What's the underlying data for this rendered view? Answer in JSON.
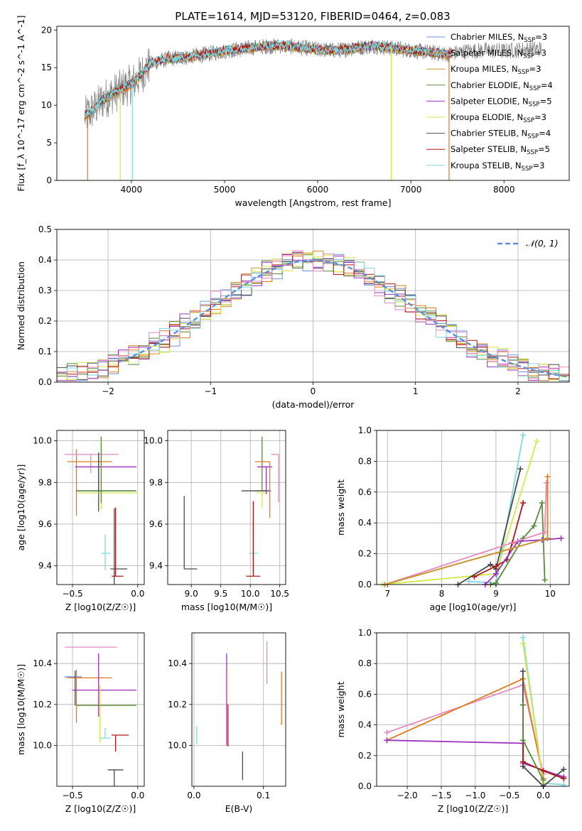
{
  "figure_title": "PLATE=1614, MJD=53120, FIBERID=0464, z=0.083",
  "colors": {
    "Chabrier MILES": "#6a8fe0",
    "Salpeter MILES": "#e07b1a",
    "Kroupa MILES": "#c8962e",
    "Chabrier ELODIE": "#5a8a3c",
    "Salpeter ELODIE": "#9b30c0",
    "Kroupa ELODIE": "#d4e84a",
    "Chabrier STELIB": "#4a4a4a",
    "Salpeter STELIB": "#b01818",
    "Kroupa STELIB": "#7fd9e0",
    "pink": "#e58ac0",
    "gaussian": "#5b8dd9"
  },
  "chart_data": [
    {
      "id": "spectrum",
      "type": "line",
      "title": "PLATE=1614, MJD=53120, FIBERID=0464, z=0.083",
      "xlabel": "wavelength [Angstrom, rest frame]",
      "ylabel": "Flux [f_λ 10^-17 erg cm^-2 s^-1 A^-1]",
      "xlim": [
        3200,
        8700
      ],
      "ylim": [
        0,
        20.5
      ],
      "xticks": [
        4000,
        5000,
        6000,
        7000,
        8000
      ],
      "yticks": [
        0,
        5,
        10,
        15,
        20
      ],
      "grid": false,
      "legend_position": "top-right",
      "legend": [
        {
          "label": "Chabrier MILES, N",
          "sub": "SSP",
          "suffix": "=3",
          "color": "#6a8fe0"
        },
        {
          "label": "Salpeter MILES, N",
          "sub": "SSP",
          "suffix": "=3",
          "color": "#e07b1a"
        },
        {
          "label": "Kroupa MILES, N",
          "sub": "SSP",
          "suffix": "=3",
          "color": "#c8962e"
        },
        {
          "label": "Chabrier ELODIE, N",
          "sub": "SSP",
          "suffix": "=4",
          "color": "#5a8a3c"
        },
        {
          "label": "Salpeter ELODIE, N",
          "sub": "SSP",
          "suffix": "=5",
          "color": "#9b30c0"
        },
        {
          "label": "Kroupa ELODIE, N",
          "sub": "SSP",
          "suffix": "=3",
          "color": "#d4e84a"
        },
        {
          "label": "Chabrier STELIB, N",
          "sub": "SSP",
          "suffix": "=4",
          "color": "#4a4a4a"
        },
        {
          "label": "Salpeter STELIB, N",
          "sub": "SSP",
          "suffix": "=5",
          "color": "#b01818"
        },
        {
          "label": "Kroupa STELIB, N",
          "sub": "SSP",
          "suffix": "=3",
          "color": "#7fd9e0"
        }
      ],
      "data_trend": {
        "x": [
          3500,
          3600,
          3700,
          3800,
          3900,
          4000,
          4100,
          4200,
          4400,
          4600,
          4800,
          5000,
          5200,
          5400,
          5600,
          5800,
          6000,
          6200,
          6400,
          6600,
          6800,
          7000,
          7200,
          7400,
          7600,
          7800,
          8000,
          8200,
          8400
        ],
        "y": [
          8.5,
          9.5,
          10.8,
          11.5,
          12.2,
          12.8,
          14.0,
          15.5,
          16.2,
          16.4,
          16.8,
          17.2,
          17.5,
          17.8,
          17.9,
          17.7,
          17.4,
          17.3,
          17.6,
          17.9,
          17.6,
          17.3,
          17.0,
          16.8,
          17.2,
          17.3,
          17.2,
          17.4,
          17.5
        ]
      },
      "drops": [
        {
          "x": 3530,
          "color": "#e07b1a"
        },
        {
          "x": 3880,
          "color": "#d4e84a"
        },
        {
          "x": 4010,
          "color": "#7fd9e0"
        },
        {
          "x": 6790,
          "color": "#d4e84a"
        },
        {
          "x": 7410,
          "color": "#e07b1a"
        }
      ]
    },
    {
      "id": "residuals",
      "type": "bar",
      "xlabel": "(data-model)/error",
      "ylabel": "Normed distribution",
      "xlim": [
        -2.5,
        2.5
      ],
      "ylim": [
        0,
        0.5
      ],
      "xticks": [
        -2,
        -1,
        0,
        1,
        2
      ],
      "yticks": [
        0.0,
        0.1,
        0.2,
        0.3,
        0.4,
        0.5
      ],
      "grid": true,
      "legend_position": "top-right",
      "legend": [
        {
          "label": "𝒩(0, 1)",
          "color": "#5b8dd9",
          "dashed": true
        }
      ],
      "bin_width": 0.1
    },
    {
      "id": "age_vs_Z",
      "type": "scatter",
      "xlabel": "Z [log10(Z/Z☉)]",
      "ylabel": "age  [log10(age/yr)]",
      "xlim": [
        -0.62,
        0.05
      ],
      "ylim": [
        9.31,
        10.05
      ],
      "xticks": [
        -0.5,
        0.0
      ],
      "yticks": [
        9.4,
        9.6,
        9.8,
        10.0
      ],
      "grid": true,
      "points": [
        {
          "x": -0.47,
          "xerr": [
            0.07,
            0.27
          ],
          "y": 9.9,
          "yerr": [
            0.26,
            0.06
          ],
          "color": "#e07b1a"
        },
        {
          "x": -0.36,
          "xerr": [
            0.2,
            0.21
          ],
          "y": 9.935,
          "yerr": [
            0.09,
            0.0
          ],
          "color": "#e58ac0"
        },
        {
          "x": -0.3,
          "xerr": [
            0.18,
            0.29
          ],
          "y": 9.875,
          "yerr": [
            0.13,
            0.07
          ],
          "color": "#9b30c0"
        },
        {
          "x": -0.3,
          "xerr": [
            0.17,
            0.28
          ],
          "y": 9.76,
          "yerr": [
            0.1,
            0.18
          ],
          "color": "#4a4a4a"
        },
        {
          "x": -0.28,
          "xerr": [
            0.18,
            0.28
          ],
          "y": 9.75,
          "yerr": [
            0.08,
            0.27
          ],
          "color": "#d4e84a"
        },
        {
          "x": -0.28,
          "xerr": [
            0.18,
            0.27
          ],
          "y": 9.76,
          "yerr": [
            0.06,
            0.26
          ],
          "color": "#5a8a3c"
        },
        {
          "x": -0.25,
          "xerr": [
            0.03,
            0.04
          ],
          "y": 9.46,
          "yerr": [
            0.08,
            0.09
          ],
          "color": "#7fd9e0"
        },
        {
          "x": -0.18,
          "xerr": [
            0.03,
            0.1
          ],
          "y": 9.385,
          "yerr": [
            0.11,
            0.29
          ],
          "color": "#4a4a4a"
        },
        {
          "x": -0.17,
          "xerr": [
            0.03,
            0.06
          ],
          "y": 9.35,
          "yerr": [
            0.0,
            0.33
          ],
          "color": "#b01818"
        }
      ]
    },
    {
      "id": "age_vs_mass",
      "type": "scatter",
      "xlabel": "mass [log10(M/M☉)]",
      "ylabel": "",
      "xlim": [
        8.6,
        10.6
      ],
      "ylim": [
        9.31,
        10.05
      ],
      "xticks": [
        9.0,
        9.5,
        10.0,
        10.5
      ],
      "yticks": [
        9.4,
        9.6,
        9.8,
        10.0
      ],
      "grid": true,
      "points": [
        {
          "x": 8.88,
          "xerr": [
            0.0,
            0.22
          ],
          "y": 9.385,
          "yerr": [
            0.0,
            0.35
          ],
          "color": "#4a4a4a"
        },
        {
          "x": 10.05,
          "xerr": [
            0.07,
            0.08
          ],
          "y": 9.46,
          "yerr": [
            0.08,
            0.17
          ],
          "color": "#7fd9e0"
        },
        {
          "x": 10.05,
          "xerr": [
            0.12,
            0.12
          ],
          "y": 9.35,
          "yerr": [
            0.0,
            0.36
          ],
          "color": "#b01818"
        },
        {
          "x": 10.2,
          "xerr": [
            0.12,
            0.1
          ],
          "y": 9.76,
          "yerr": [
            0.0,
            0.26
          ],
          "color": "#5a8a3c"
        },
        {
          "x": 10.2,
          "xerr": [
            0.1,
            0.08
          ],
          "y": 9.75,
          "yerr": [
            0.07,
            0.0
          ],
          "color": "#d4e84a"
        },
        {
          "x": 10.2,
          "xerr": [
            0.35,
            0.15
          ],
          "y": 9.76,
          "yerr": [
            0.0,
            0.0
          ],
          "color": "#4a4a4a"
        },
        {
          "x": 10.27,
          "xerr": [
            0.15,
            0.1
          ],
          "y": 9.875,
          "yerr": [
            0.13,
            0.0
          ],
          "color": "#9b30c0"
        },
        {
          "x": 10.33,
          "xerr": [
            0.25,
            0.0
          ],
          "y": 9.9,
          "yerr": [
            0.27,
            0.0
          ],
          "color": "#e07b1a"
        },
        {
          "x": 10.48,
          "xerr": [
            0.13,
            0.0
          ],
          "y": 9.935,
          "yerr": [
            0.23,
            0.0
          ],
          "color": "#e58ac0"
        }
      ]
    },
    {
      "id": "weight_vs_age",
      "type": "line",
      "xlabel": "age  [log10(age/yr)]",
      "ylabel": "mass weight",
      "xlim": [
        6.8,
        10.35
      ],
      "ylim": [
        0.0,
        1.0
      ],
      "xticks": [
        7,
        8,
        9,
        10
      ],
      "yticks": [
        0.0,
        0.2,
        0.4,
        0.6,
        0.8,
        1.0
      ],
      "grid": true,
      "series": [
        {
          "color": "#7fd9e0",
          "x": [
            8.5,
            9.0,
            9.5
          ],
          "y": [
            0.02,
            0.01,
            0.97
          ]
        },
        {
          "color": "#d4e84a",
          "x": [
            6.9,
            9.0,
            9.75
          ],
          "y": [
            0.0,
            0.07,
            0.93
          ]
        },
        {
          "color": "#4a4a4a",
          "x": [
            8.3,
            8.9,
            9.0,
            9.45
          ],
          "y": [
            0.0,
            0.13,
            0.1,
            0.75
          ]
        },
        {
          "color": "#b01818",
          "x": [
            8.6,
            9.0,
            9.2,
            9.3,
            9.5
          ],
          "y": [
            0.05,
            0.12,
            0.16,
            0.27,
            0.53
          ]
        },
        {
          "color": "#5a8a3c",
          "x": [
            8.9,
            9.0,
            9.5,
            9.7,
            9.85,
            9.9
          ],
          "y": [
            0.0,
            0.01,
            0.3,
            0.38,
            0.53,
            0.03
          ]
        },
        {
          "color": "#9b30c0",
          "x": [
            8.8,
            9.0,
            9.4,
            9.85,
            10.2
          ],
          "y": [
            0.0,
            0.07,
            0.28,
            0.29,
            0.3
          ]
        },
        {
          "color": "#e58ac0",
          "x": [
            6.95,
            9.9,
            9.93
          ],
          "y": [
            0.0,
            0.34,
            0.66
          ]
        },
        {
          "color": "#e07b1a",
          "x": [
            6.95,
            9.95,
            9.95
          ],
          "y": [
            0.0,
            0.3,
            0.7
          ]
        },
        {
          "color": "#c8962e",
          "x": [
            6.95,
            9.95
          ],
          "y": [
            0.0,
            0.3
          ]
        }
      ]
    },
    {
      "id": "mass_vs_Z",
      "type": "scatter",
      "xlabel": "Z [log10(Z/Z☉)]",
      "ylabel": "mass [log10(M/M☉)]",
      "xlim": [
        -0.62,
        0.05
      ],
      "ylim": [
        9.8,
        10.55
      ],
      "xticks": [
        -0.5,
        0.0
      ],
      "yticks": [
        10.0,
        10.2,
        10.4
      ],
      "grid": true,
      "points": [
        {
          "x": -0.5,
          "xerr": [
            0.06,
            0.07
          ],
          "y": 10.335,
          "yerr": [
            0.0,
            0.0
          ],
          "color": "#6a8fe0"
        },
        {
          "x": -0.47,
          "xerr": [
            0.07,
            0.27
          ],
          "y": 10.33,
          "yerr": [
            0.22,
            0.04
          ],
          "color": "#e07b1a"
        },
        {
          "x": -0.36,
          "xerr": [
            0.2,
            0.2
          ],
          "y": 10.48,
          "yerr": [
            0.0,
            0.0
          ],
          "color": "#e58ac0"
        },
        {
          "x": -0.3,
          "xerr": [
            0.2,
            0.29
          ],
          "y": 10.27,
          "yerr": [
            0.13,
            0.18
          ],
          "color": "#9b30c0"
        },
        {
          "x": -0.29,
          "xerr": [
            0.18,
            0.28
          ],
          "y": 10.195,
          "yerr": [
            0.18,
            0.1
          ],
          "color": "#d4e84a"
        },
        {
          "x": -0.29,
          "xerr": [
            0.18,
            0.28
          ],
          "y": 10.195,
          "yerr": [
            0.0,
            0.0
          ],
          "color": "#5a8a3c"
        },
        {
          "x": -0.48,
          "xerr": [
            0.0,
            0.0
          ],
          "y": 10.195,
          "yerr": [
            0.0,
            0.17
          ],
          "color": "#4a4a4a"
        },
        {
          "x": -0.25,
          "xerr": [
            0.04,
            0.04
          ],
          "y": 10.035,
          "yerr": [
            0.0,
            0.05
          ],
          "color": "#7fd9e0"
        },
        {
          "x": -0.17,
          "xerr": [
            0.03,
            0.1
          ],
          "y": 10.05,
          "yerr": [
            0.08,
            0.0
          ],
          "color": "#b01818"
        },
        {
          "x": -0.18,
          "xerr": [
            0.05,
            0.07
          ],
          "y": 9.88,
          "yerr": [
            0.08,
            0.0
          ],
          "color": "#4a4a4a"
        }
      ]
    },
    {
      "id": "mass_vs_ebv",
      "type": "scatter",
      "xlabel": "E(B-V)",
      "ylabel": "",
      "xlim": [
        -0.003,
        0.132
      ],
      "ylim": [
        9.8,
        10.55
      ],
      "xticks": [
        0.0,
        0.1
      ],
      "yticks": [
        10.0,
        10.2,
        10.4
      ],
      "grid": true,
      "vsegments": [
        {
          "x": 0.004,
          "y0": 10.005,
          "y1": 10.095,
          "color": "#7fd9e0"
        },
        {
          "x": 0.047,
          "y0": 10.0,
          "y1": 10.45,
          "color": "#9b30c0"
        },
        {
          "x": 0.048,
          "y0": 10.2,
          "y1": 10.38,
          "color": "#d4e84a"
        },
        {
          "x": 0.049,
          "y0": 9.995,
          "y1": 10.2,
          "color": "#b01818"
        },
        {
          "x": 0.07,
          "y0": 9.83,
          "y1": 9.97,
          "color": "#4a4a4a"
        },
        {
          "x": 0.105,
          "y0": 10.3,
          "y1": 10.51,
          "color": "#e58ac0"
        },
        {
          "x": 0.126,
          "y0": 10.1,
          "y1": 10.36,
          "color": "#e07b1a"
        }
      ]
    },
    {
      "id": "weight_vs_Z",
      "type": "line",
      "xlabel": "Z [log10(Z/Z☉)]",
      "ylabel": "mass weight",
      "xlim": [
        -2.45,
        0.38
      ],
      "ylim": [
        0.0,
        1.0
      ],
      "xticks": [
        -2.0,
        -1.5,
        -1.0,
        -0.5,
        0.0
      ],
      "yticks": [
        0.0,
        0.2,
        0.4,
        0.6,
        0.8,
        1.0
      ],
      "grid": true,
      "series": [
        {
          "color": "#e58ac0",
          "x": [
            -2.3,
            -0.3,
            0.0
          ],
          "y": [
            0.35,
            0.66,
            0.08
          ]
        },
        {
          "color": "#e07b1a",
          "x": [
            -2.3,
            -0.3,
            0.0
          ],
          "y": [
            0.3,
            0.7,
            0.05
          ]
        },
        {
          "color": "#9b30c0",
          "x": [
            -2.3,
            -0.3,
            -0.3,
            0.3
          ],
          "y": [
            0.3,
            0.28,
            0.15,
            0.06
          ]
        },
        {
          "color": "#7fd9e0",
          "x": [
            -0.3,
            0.0,
            0.3
          ],
          "y": [
            0.97,
            0.02,
            0.01
          ]
        },
        {
          "color": "#d4e84a",
          "x": [
            -0.3,
            0.0
          ],
          "y": [
            0.93,
            0.02
          ]
        },
        {
          "color": "#4a4a4a",
          "x": [
            -0.3,
            -0.3,
            0.0,
            0.3
          ],
          "y": [
            0.75,
            0.13,
            0.0,
            0.11
          ]
        },
        {
          "color": "#b01818",
          "x": [
            -0.3,
            -0.3,
            0.0,
            0.3
          ],
          "y": [
            0.53,
            0.16,
            0.1,
            0.05
          ]
        },
        {
          "color": "#5a8a3c",
          "x": [
            -0.3,
            -0.3,
            0.0
          ],
          "y": [
            0.53,
            0.3,
            0.04
          ]
        }
      ]
    }
  ]
}
